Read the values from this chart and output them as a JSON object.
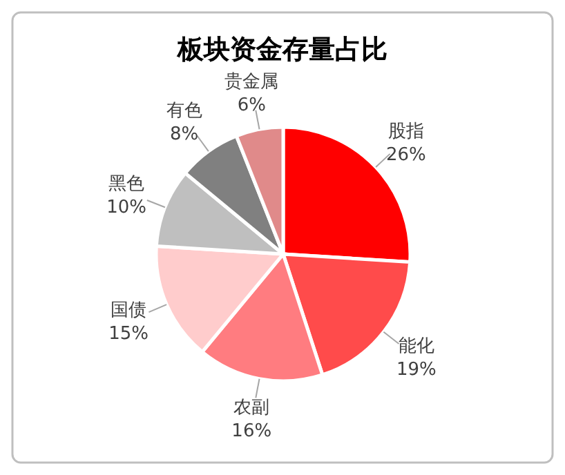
{
  "chart_data": {
    "type": "pie",
    "title": "板块资金存量占比",
    "categories": [
      "股指",
      "能化",
      "农副",
      "国债",
      "黑色",
      "有色",
      "贵金属"
    ],
    "values": [
      26,
      19,
      16,
      15,
      10,
      8,
      6
    ],
    "colors": [
      "#ff0000",
      "#ff4b4b",
      "#ff7c80",
      "#ffcccc",
      "#bfbfbf",
      "#808080",
      "#e08a8a"
    ],
    "value_labels": [
      "26%",
      "19%",
      "16%",
      "15%",
      "10%",
      "8%",
      "6%"
    ]
  }
}
